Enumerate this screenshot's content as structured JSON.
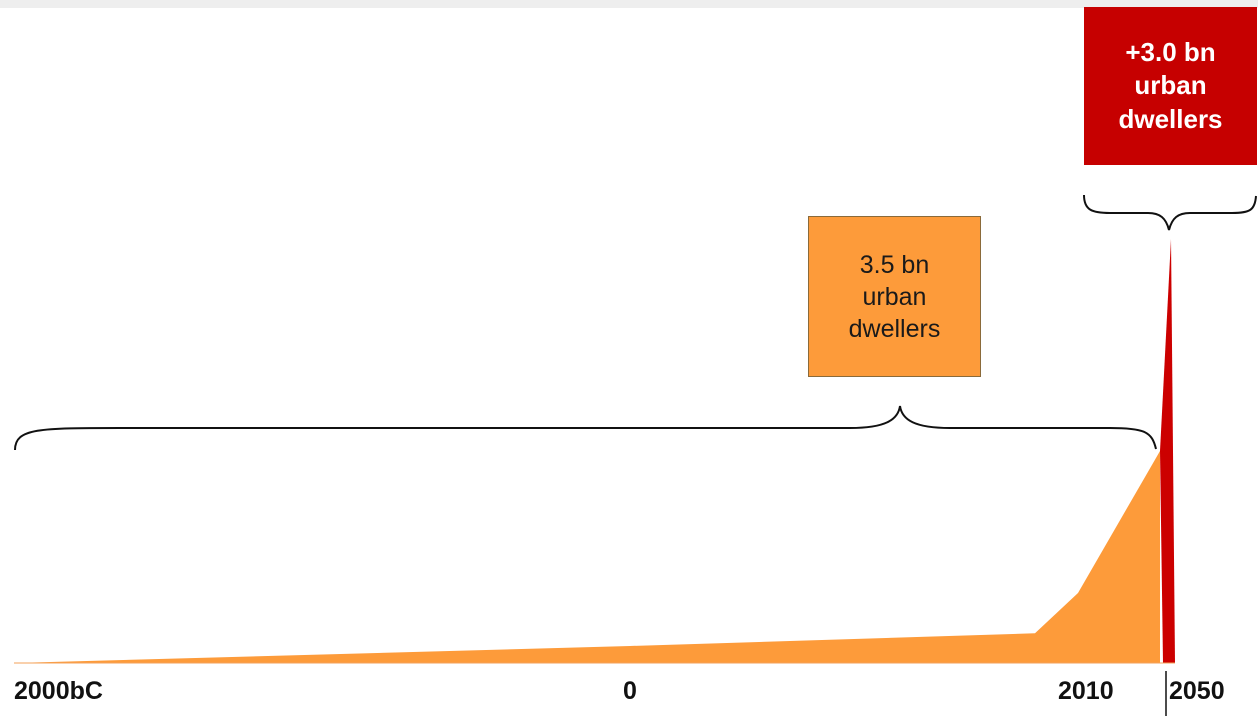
{
  "chart_data": {
    "type": "area",
    "x_tick_labels": [
      "2000bC",
      "0",
      "2010",
      "2050"
    ],
    "series": [
      {
        "color": "#fd9b3a",
        "points": [
          {
            "x": -2000,
            "y": 0
          },
          {
            "x": 0,
            "y": 0.08
          },
          {
            "x": 1750,
            "y": 0.14
          },
          {
            "x": 1900,
            "y": 0.33
          },
          {
            "x": 2010,
            "y": 1.0
          }
        ]
      },
      {
        "color": "#cc0000",
        "points": [
          {
            "x": 2010,
            "y": 1.0
          },
          {
            "x": 2050,
            "y": 2.0
          }
        ]
      }
    ],
    "annotations": {
      "orange_box_lines": [
        "3.5 bn",
        "urban",
        "dwellers"
      ],
      "red_box_lines": [
        "+3.0 bn",
        "urban",
        "dwellers"
      ]
    },
    "colors": {
      "orange": "#fd9b3a",
      "red": "#c60000",
      "brace": "#111111"
    }
  }
}
